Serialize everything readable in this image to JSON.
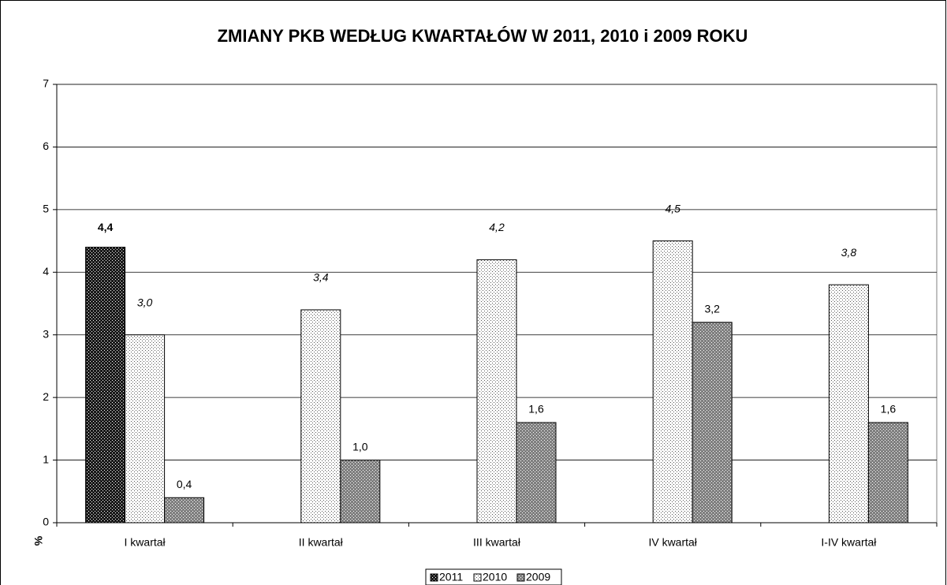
{
  "chart_data": {
    "type": "bar",
    "title": "ZMIANY PKB WEDŁUG KWARTAŁÓW W 2011, 2010 i 2009 ROKU",
    "y_label": "%",
    "categories": [
      "I kwartał",
      "II kwartał",
      "III kwartał",
      "IV kwartał",
      "I-IV kwartał"
    ],
    "series": [
      {
        "name": "2011",
        "color": "#1a1a1a",
        "values": [
          4.4,
          null,
          null,
          null,
          null
        ],
        "value_labels": [
          "4,4",
          null,
          null,
          null,
          null
        ]
      },
      {
        "name": "2010",
        "color": "#ffffff",
        "values": [
          3.0,
          3.4,
          4.2,
          4.5,
          3.8
        ],
        "value_labels": [
          "3,0",
          "3,4",
          "4,2",
          "4,5",
          "3,8"
        ]
      },
      {
        "name": "2009",
        "color": "#808080",
        "values": [
          0.4,
          1.0,
          1.6,
          3.2,
          1.6
        ],
        "value_labels": [
          "0,4",
          "1,0",
          "1,6",
          "3,2",
          "1,6"
        ]
      }
    ],
    "ylim": [
      0,
      7
    ],
    "yticks": [
      0,
      1,
      2,
      3,
      4,
      5,
      6,
      7
    ],
    "grid": true,
    "legend": "bottom"
  }
}
